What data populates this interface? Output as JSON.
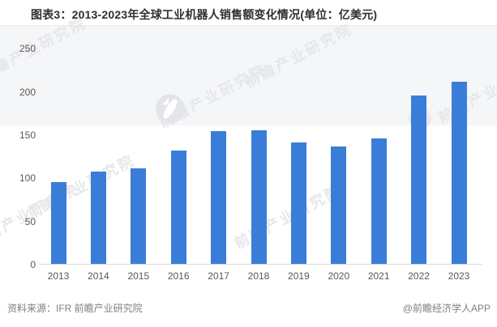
{
  "page": {
    "title": "图表3：2013-2023年全球工业机器人销售额变化情况(单位：亿美元)"
  },
  "chart_data": {
    "type": "bar",
    "title": "2013-2023年全球工业机器人销售额变化情况",
    "unit": "亿美元",
    "categories": [
      "2013",
      "2014",
      "2015",
      "2016",
      "2017",
      "2018",
      "2019",
      "2020",
      "2021",
      "2022",
      "2023"
    ],
    "values": [
      95,
      107,
      111,
      131,
      154,
      155,
      141,
      136,
      145,
      195,
      211
    ],
    "yticks": [
      0,
      50,
      100,
      150,
      200,
      250
    ],
    "ylim": [
      0,
      250
    ],
    "xlabel": "",
    "ylabel": "",
    "grid": false,
    "legend": false,
    "bar_color": "#3a7dd9"
  },
  "footer": {
    "source": "资料来源：IFR 前瞻产业研究院",
    "credit": "@前瞻经济学人APP"
  },
  "watermark": {
    "text": "前瞻产业研究院",
    "text_color": "#e5e7ea",
    "logo_circle_color": "#e3e5e8",
    "band_color": "#f5f6f7"
  },
  "colors": {
    "bar": "#3a7dd9",
    "axis_label": "#595959",
    "axis_line": "#d9d9d9",
    "footer_text": "#7f7f7f"
  }
}
